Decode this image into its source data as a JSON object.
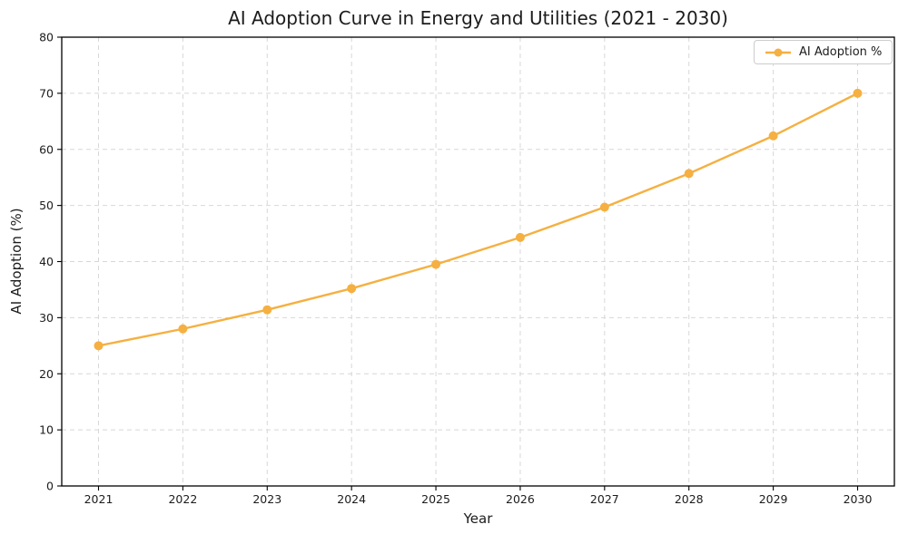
{
  "chart_data": {
    "type": "line",
    "title": "AI Adoption Curve in Energy and Utilities (2021 - 2030)",
    "xlabel": "Year",
    "ylabel": "AI Adoption (%)",
    "categories": [
      "2021",
      "2022",
      "2023",
      "2024",
      "2025",
      "2026",
      "2027",
      "2028",
      "2029",
      "2030"
    ],
    "series": [
      {
        "name": "AI Adoption %",
        "values": [
          25.0,
          28.0,
          31.4,
          35.2,
          39.5,
          44.3,
          49.7,
          55.7,
          62.4,
          70.0
        ],
        "color": "#F5B041"
      }
    ],
    "ylim": [
      0,
      80
    ],
    "yticks": [
      0,
      10,
      20,
      30,
      40,
      50,
      60,
      70,
      80
    ],
    "grid": true,
    "grid_style": "dashed",
    "legend_position": "upper right",
    "colors": {
      "line": "#F5B041",
      "grid": "#d7d7d7",
      "axis": "#000000",
      "text": "#1c1c1c"
    }
  }
}
